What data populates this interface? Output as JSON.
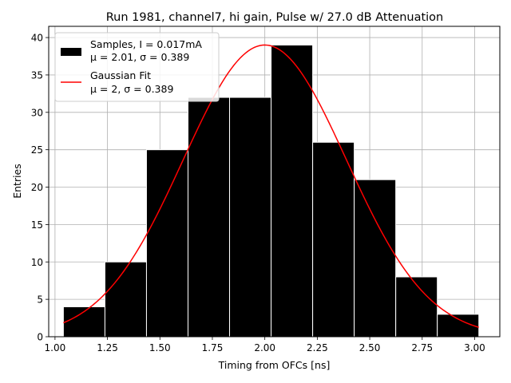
{
  "chart_data": {
    "type": "bar",
    "title": "Run 1981, channel7, hi gain, Pulse w/ 27.0 dB Attenuation",
    "xlabel": "Timing from OFCs [ns]",
    "ylabel": "Entries",
    "xlim": [
      0.97,
      3.12
    ],
    "ylim": [
      0,
      41.5
    ],
    "grid": true,
    "legend_position": "top-left",
    "x_ticks": [
      "1.00",
      "1.25",
      "1.50",
      "1.75",
      "2.00",
      "2.25",
      "2.50",
      "2.75",
      "3.00"
    ],
    "y_ticks": [
      "0",
      "5",
      "10",
      "15",
      "20",
      "25",
      "30",
      "35",
      "40"
    ],
    "bins": {
      "edges": [
        1.04,
        1.238,
        1.436,
        1.634,
        1.832,
        2.03,
        2.228,
        2.426,
        2.624,
        2.822,
        3.02
      ],
      "counts": [
        4,
        10,
        25,
        32,
        32,
        39,
        26,
        21,
        8,
        3
      ]
    },
    "fit": {
      "mu": 2.0,
      "sigma": 0.389,
      "amplitude": 39.0,
      "x_range": [
        1.04,
        3.02
      ]
    },
    "legend": [
      {
        "label_line1": "Samples, I = 0.017mA",
        "label_line2": "μ = 2.01, σ = 0.389",
        "color": "#000000"
      },
      {
        "label_line1": "Gaussian Fit",
        "label_line2": "μ = 2, σ = 0.389",
        "color": "#ff0000"
      }
    ],
    "colors": {
      "bars": "#000000",
      "bar_edge": "#ffffff",
      "fit": "#ff0000",
      "grid": "#b0b0b0"
    }
  }
}
